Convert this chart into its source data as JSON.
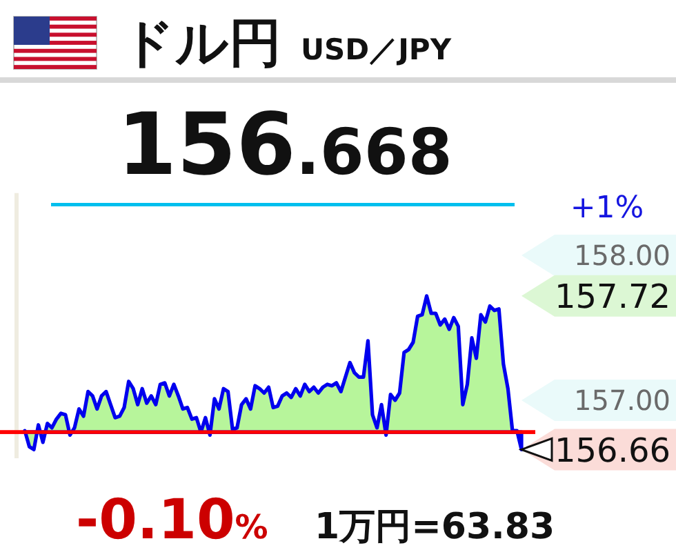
{
  "chart_data": {
    "type": "area",
    "title": "ドル円",
    "subtitle": "USD／JPY",
    "annotations": [
      "156.668",
      "157.72",
      "156.66",
      "-0.10%",
      "1万円=63.83",
      "+1%"
    ],
    "categories": [
      null,
      null,
      null,
      null,
      null,
      null,
      null,
      null,
      null,
      null,
      null,
      null,
      null,
      null,
      null,
      null,
      null,
      null,
      null,
      null,
      null,
      null,
      null,
      null,
      null,
      null,
      null,
      null,
      null,
      null,
      null,
      null,
      null,
      null,
      null,
      null,
      null,
      null,
      null,
      null,
      null,
      null,
      null,
      null,
      null,
      null,
      null,
      null,
      null,
      null,
      null,
      null,
      null,
      null,
      null,
      null,
      null,
      null,
      null,
      null,
      null,
      null,
      null,
      null,
      null,
      null,
      null,
      null,
      null,
      null,
      null,
      null,
      null,
      null,
      null,
      null,
      null,
      null,
      null,
      null,
      null,
      null,
      null,
      null,
      null,
      null,
      null,
      null,
      null,
      null,
      null,
      null,
      null,
      null,
      null,
      null,
      null,
      null,
      null,
      null,
      null,
      null,
      null,
      null,
      null,
      null,
      null,
      null,
      null,
      null,
      null
    ],
    "series": [
      {
        "color": "#b7f59b",
        "values": [
          156.79,
          156.68,
          156.66,
          156.83,
          156.71,
          156.84,
          156.81,
          156.87,
          156.91,
          156.9,
          156.76,
          156.81,
          156.94,
          156.89,
          157.06,
          157.03,
          156.94,
          157.03,
          157.06,
          156.97,
          156.88,
          156.89,
          156.95,
          157.13,
          157.08,
          156.97,
          157.08,
          156.98,
          157.03,
          156.97,
          157.11,
          157.12,
          157.03,
          157.11,
          157.03,
          156.94,
          156.95,
          156.87,
          156.88,
          156.78,
          156.88,
          156.76,
          157.01,
          156.94,
          157.08,
          157.06,
          156.8,
          156.81,
          156.97,
          157.01,
          156.94,
          157.1,
          157.08,
          157.05,
          157.09,
          156.95,
          156.96,
          157.03,
          157.05,
          157.02,
          157.08,
          157.03,
          157.11,
          157.06,
          157.09,
          157.05,
          157.09,
          157.11,
          157.1,
          157.12,
          157.06,
          157.16,
          157.26,
          157.19,
          157.16,
          157.16,
          157.41,
          156.9,
          156.81,
          156.97,
          156.76,
          157.04,
          157.0,
          157.05,
          157.33,
          157.35,
          157.4,
          157.58,
          157.59,
          157.72,
          157.6,
          157.6,
          157.52,
          157.56,
          157.49,
          157.57,
          157.51,
          156.97,
          157.11,
          157.43,
          157.29,
          157.59,
          157.54,
          157.65,
          157.62,
          157.63,
          157.25,
          157.08,
          156.79,
          156.79,
          156.66
        ]
      }
    ],
    "ylim": [
      156.6,
      158.43
    ],
    "yticks": [
      {
        "value": 157,
        "label": "157.00"
      },
      {
        "value": 158,
        "label": "158.00"
      }
    ],
    "tick_labels": "y",
    "ref_lines": [
      {
        "axis": "y",
        "value": 156.78,
        "color": "#ff0000"
      },
      {
        "axis": "y",
        "value": 158.35,
        "color": "#00bfee"
      }
    ]
  }
}
